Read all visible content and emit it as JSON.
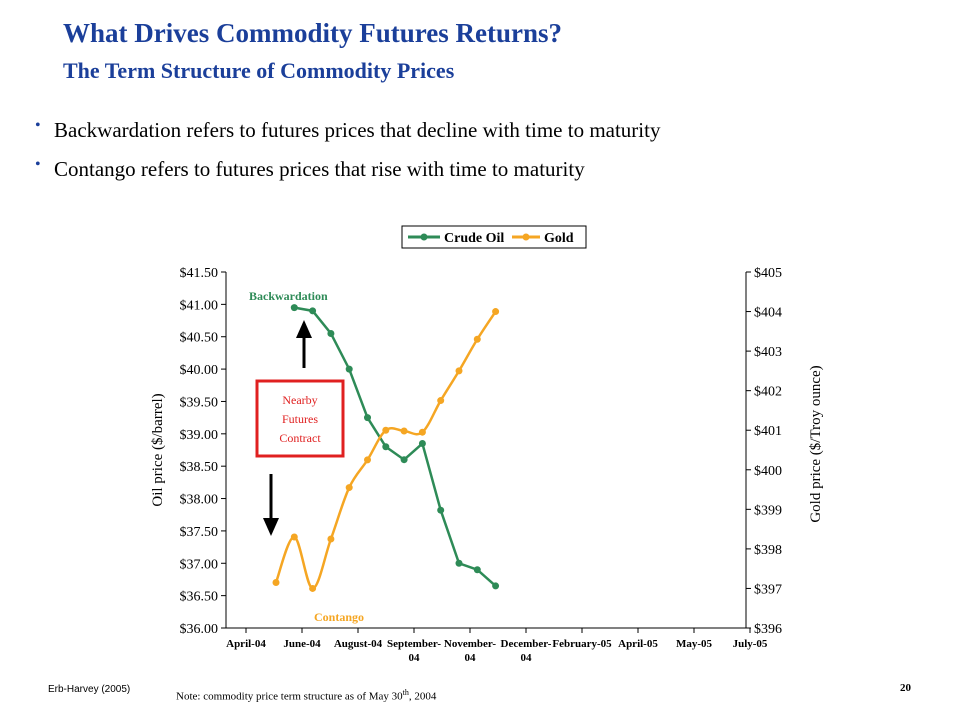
{
  "title": "What Drives Commodity Futures Returns?",
  "subtitle": "The Term Structure of Commodity Prices",
  "bullets": [
    "Backwardation refers to futures prices that decline with time to maturity",
    "Contango refers to futures prices that rise with time to maturity"
  ],
  "footer": {
    "source": "Erb-Harvey (2005)",
    "note": "Note: commodity price term structure as of May 30th, 2004",
    "page": "20"
  },
  "colors": {
    "title": "#1b3f9a",
    "crude_oil": "#2e8b57",
    "gold": "#f5a623",
    "annotation_box": "#e02020"
  },
  "chart_data": {
    "type": "line",
    "x_labels": [
      [
        "April-04"
      ],
      [
        "June-04"
      ],
      [
        "August-04"
      ],
      [
        "September-",
        "04"
      ],
      [
        "November-",
        "04"
      ],
      [
        "December-",
        "04"
      ],
      [
        "February-05"
      ],
      [
        "April-05"
      ],
      [
        "May-05"
      ],
      [
        "July-05"
      ]
    ],
    "ylabel_left": "Oil price ($/barrel)",
    "ylabel_right": "Gold price ($/Troy ounce)",
    "ylim_left": [
      36.0,
      41.5
    ],
    "ylim_right": [
      396,
      405
    ],
    "yticks_left": [
      "$41.50",
      "$41.00",
      "$40.50",
      "$40.00",
      "$39.50",
      "$39.00",
      "$38.50",
      "$38.00",
      "$37.50",
      "$37.00",
      "$36.50",
      "$36.00"
    ],
    "yticks_right": [
      "$405",
      "$404",
      "$403",
      "$402",
      "$401",
      "$400",
      "$399",
      "$398",
      "$397",
      "$396"
    ],
    "legend_position": "top",
    "series": [
      {
        "name": "Crude Oil",
        "axis": "left",
        "color": "#2e8b57",
        "points": [
          [
            1.0,
            40.95
          ],
          [
            2.0,
            40.9
          ],
          [
            3.0,
            40.55
          ],
          [
            4.0,
            40.0
          ],
          [
            5.0,
            39.25
          ],
          [
            6.0,
            38.8
          ],
          [
            7.0,
            38.6
          ],
          [
            8.0,
            38.85
          ],
          [
            9.0,
            37.82
          ],
          [
            10.0,
            37.0
          ],
          [
            11.0,
            36.9
          ],
          [
            12.0,
            36.65
          ]
        ]
      },
      {
        "name": "Gold",
        "axis": "right",
        "color": "#f5a623",
        "points": [
          [
            0.0,
            397.15
          ],
          [
            1.0,
            398.3
          ],
          [
            2.0,
            397.0
          ],
          [
            3.0,
            398.25
          ],
          [
            4.0,
            399.55
          ],
          [
            5.0,
            400.25
          ],
          [
            6.0,
            401.0
          ],
          [
            7.0,
            400.98
          ],
          [
            8.0,
            400.95
          ],
          [
            9.0,
            401.75
          ],
          [
            10.0,
            402.5
          ],
          [
            11.0,
            403.3
          ],
          [
            12.0,
            404.0
          ]
        ]
      }
    ],
    "annotations": {
      "backwardation": "Backwardation",
      "contango": "Contango",
      "nearby": [
        "Nearby",
        "Futures",
        "Contract"
      ]
    }
  }
}
